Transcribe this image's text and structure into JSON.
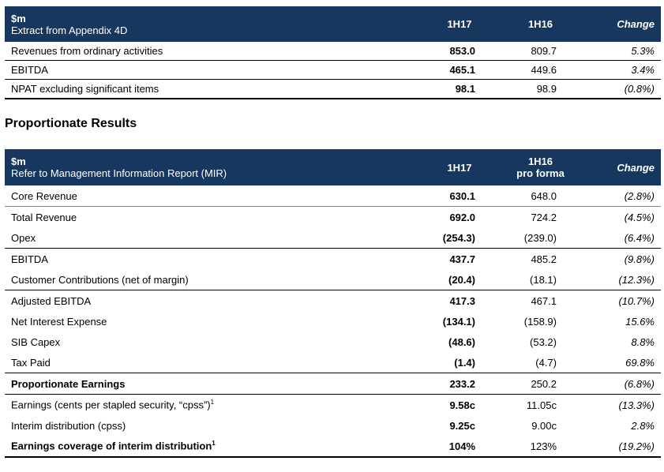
{
  "table1": {
    "header": {
      "unit": "$m",
      "subtitle": "Extract from Appendix 4D",
      "col1": "1H17",
      "col2": "1H16",
      "col3": "Change"
    },
    "rows": [
      {
        "label": "Revenues from ordinary activities",
        "v1": "853.0",
        "v2": "809.7",
        "change": "5.3%"
      },
      {
        "label": "EBITDA",
        "v1": "465.1",
        "v2": "449.6",
        "change": "3.4%"
      },
      {
        "label": "NPAT excluding significant items",
        "v1": "98.1",
        "v2": "98.9",
        "change": "(0.8%)"
      }
    ]
  },
  "section_title": "Proportionate Results",
  "table2": {
    "header": {
      "unit": "$m",
      "subtitle": "Refer to Management Information Report (MIR)",
      "col1": "1H17",
      "col2_line1": "1H16",
      "col2_line2": "pro forma",
      "col3": "Change"
    },
    "rows": [
      {
        "label": "Core Revenue",
        "v1": "630.1",
        "v2": "648.0",
        "change": "(2.8%)"
      },
      {
        "label": "Total Revenue",
        "v1": "692.0",
        "v2": "724.2",
        "change": "(4.5%)"
      },
      {
        "label": "Opex",
        "v1": "(254.3)",
        "v2": "(239.0)",
        "change": "(6.4%)"
      },
      {
        "label": "EBITDA",
        "v1": "437.7",
        "v2": "485.2",
        "change": "(9.8%)"
      },
      {
        "label": "Customer Contributions (net of margin)",
        "v1": "(20.4)",
        "v2": "(18.1)",
        "change": "(12.3%)"
      },
      {
        "label": "Adjusted EBITDA",
        "v1": "417.3",
        "v2": "467.1",
        "change": "(10.7%)"
      },
      {
        "label": "Net Interest Expense",
        "v1": "(134.1)",
        "v2": "(158.9)",
        "change": "15.6%"
      },
      {
        "label": "SIB Capex",
        "v1": "(48.6)",
        "v2": "(53.2)",
        "change": "8.8%"
      },
      {
        "label": "Tax Paid",
        "v1": "(1.4)",
        "v2": "(4.7)",
        "change": "69.8%"
      },
      {
        "label": "Proportionate Earnings",
        "v1": "233.2",
        "v2": "250.2",
        "change": "(6.8%)"
      },
      {
        "label": "Earnings (cents per stapled security, “cpss”)",
        "sup": "1",
        "v1": "9.58c",
        "v2": "11.05c",
        "change": "(13.3%)"
      },
      {
        "label": "Interim distribution (cpss)",
        "v1": "9.25c",
        "v2": "9.00c",
        "change": "2.8%"
      },
      {
        "label": "Earnings coverage of interim distribution",
        "sup": "1",
        "v1": "104%",
        "v2": "123%",
        "change": "(19.2%)"
      }
    ]
  }
}
